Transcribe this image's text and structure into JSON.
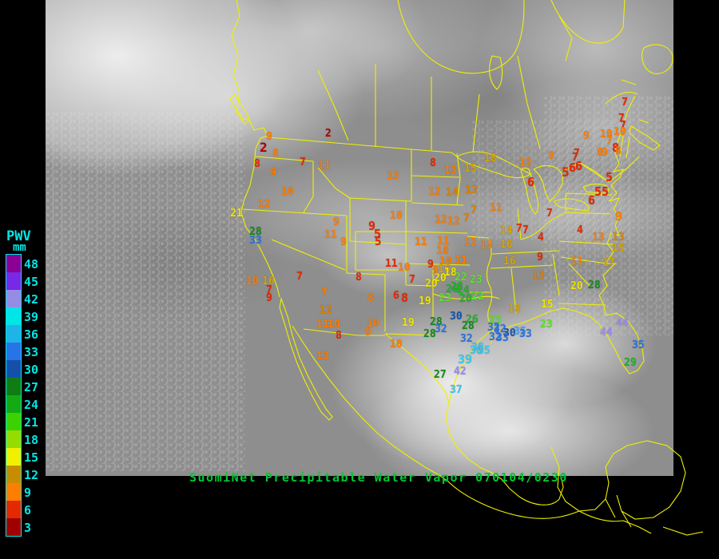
{
  "caption": {
    "text": "SuomiNet Precipitable Water Vapor 070104/0230"
  },
  "legend": {
    "title": "PWV",
    "unit": "mm",
    "entries": [
      {
        "value": "48",
        "color": "#8c0096"
      },
      {
        "value": "45",
        "color": "#7828e6"
      },
      {
        "value": "42",
        "color": "#968ce6"
      },
      {
        "value": "39",
        "color": "#00e6e6"
      },
      {
        "value": "36",
        "color": "#1eb4e6"
      },
      {
        "value": "33",
        "color": "#2874e6"
      },
      {
        "value": "30",
        "color": "#1450aa"
      },
      {
        "value": "27",
        "color": "#0f7d14"
      },
      {
        "value": "24",
        "color": "#14aa14"
      },
      {
        "value": "21",
        "color": "#3cd200"
      },
      {
        "value": "18",
        "color": "#96dc00"
      },
      {
        "value": "15",
        "color": "#f0f000"
      },
      {
        "value": "12",
        "color": "#c88c00"
      },
      {
        "value": "9",
        "color": "#ff7d00"
      },
      {
        "value": "6",
        "color": "#e62800"
      },
      {
        "value": "3",
        "color": "#a00000"
      }
    ]
  },
  "palette": {
    "DR": "#b40000",
    "R": "#e62800",
    "O": "#ff7d00",
    "MO": "#e08200",
    "DY": "#d7a500",
    "Y": "#f0e600",
    "LG": "#5ae628",
    "G": "#1eb428",
    "DG": "#128c1e",
    "DB": "#1455b4",
    "B": "#2874e6",
    "LB": "#46a0ff",
    "C": "#3cc8f0",
    "P": "#9b8cf0"
  },
  "stations": [
    [
      "9",
      333,
      165,
      "O"
    ],
    [
      "2",
      407,
      161,
      "DR"
    ],
    [
      "2",
      325,
      177,
      "DR",
      16
    ],
    [
      "8",
      341,
      186,
      "O"
    ],
    [
      "8",
      318,
      199,
      "R"
    ],
    [
      "9",
      338,
      210,
      "O"
    ],
    [
      "7",
      375,
      197,
      "R"
    ],
    [
      "11",
      398,
      201,
      "O"
    ],
    [
      "10",
      352,
      234,
      "O"
    ],
    [
      "12",
      323,
      250,
      "O"
    ],
    [
      "21",
      288,
      261,
      "Y"
    ],
    [
      "28",
      312,
      284,
      "DG"
    ],
    [
      "33",
      312,
      295,
      "B"
    ],
    [
      "10",
      308,
      346,
      "O"
    ],
    [
      "16",
      328,
      346,
      "DY"
    ],
    [
      "7",
      333,
      357,
      "R"
    ],
    [
      "9",
      333,
      367,
      "R"
    ],
    [
      "7",
      371,
      340,
      "R"
    ],
    [
      "7",
      402,
      360,
      "O"
    ],
    [
      "12",
      400,
      382,
      "MO"
    ],
    [
      "11",
      396,
      400,
      "O"
    ],
    [
      "10",
      410,
      400,
      "O"
    ],
    [
      "8",
      420,
      414,
      "R"
    ],
    [
      "13",
      396,
      440,
      "O"
    ],
    [
      "9",
      417,
      272,
      "O"
    ],
    [
      "11",
      406,
      288,
      "O"
    ],
    [
      "9",
      426,
      297,
      "O"
    ],
    [
      "9",
      461,
      276,
      "R",
      15
    ],
    [
      "5",
      468,
      286,
      "R",
      15
    ],
    [
      "5",
      469,
      296,
      "R",
      14
    ],
    [
      "11",
      482,
      324,
      "R"
    ],
    [
      "8",
      445,
      341,
      "R"
    ],
    [
      "8",
      460,
      367,
      "O"
    ],
    [
      "6",
      492,
      364,
      "R"
    ],
    [
      "8",
      502,
      366,
      "R",
      15
    ],
    [
      "10",
      459,
      399,
      "O"
    ],
    [
      "9",
      457,
      410,
      "O"
    ],
    [
      "10",
      488,
      425,
      "O"
    ],
    [
      "8",
      538,
      198,
      "R"
    ],
    [
      "13",
      484,
      214,
      "O"
    ],
    [
      "13",
      556,
      207,
      "O"
    ],
    [
      "15",
      581,
      205,
      "DY"
    ],
    [
      "18",
      606,
      192,
      "DY"
    ],
    [
      "12",
      536,
      234,
      "O"
    ],
    [
      "14",
      558,
      235,
      "MO"
    ],
    [
      "13",
      582,
      232,
      "MO"
    ],
    [
      "10",
      488,
      264,
      "O"
    ],
    [
      "7",
      589,
      257,
      "MO"
    ],
    [
      "7",
      580,
      267,
      "MO"
    ],
    [
      "11",
      613,
      254,
      "O"
    ],
    [
      "12",
      544,
      269,
      "O"
    ],
    [
      "12",
      560,
      271,
      "O"
    ],
    [
      "11",
      519,
      297,
      "O"
    ],
    [
      "11",
      547,
      296,
      "O"
    ],
    [
      "12",
      581,
      298,
      "O"
    ],
    [
      "13",
      601,
      301,
      "O"
    ],
    [
      "16",
      626,
      300,
      "DY"
    ],
    [
      "14",
      626,
      283,
      "DY"
    ],
    [
      "7",
      646,
      280,
      "R"
    ],
    [
      "7",
      654,
      282,
      "R"
    ],
    [
      "10",
      546,
      308,
      "O"
    ],
    [
      "10",
      550,
      321,
      "O"
    ],
    [
      "11",
      569,
      320,
      "O"
    ],
    [
      "16",
      630,
      321,
      "DY"
    ],
    [
      "9",
      672,
      316,
      "R"
    ],
    [
      "13",
      666,
      339,
      "MO"
    ],
    [
      "10",
      498,
      329,
      "O"
    ],
    [
      "9",
      686,
      189,
      "O"
    ],
    [
      "12",
      650,
      198,
      "O"
    ],
    [
      "6",
      660,
      221,
      "R",
      15
    ],
    [
      "7",
      718,
      186,
      "R"
    ],
    [
      "5",
      703,
      208,
      "R",
      16
    ],
    [
      "6",
      712,
      203,
      "R",
      15
    ],
    [
      "6",
      720,
      201,
      "R",
      15
    ],
    [
      "9",
      747,
      185,
      "O"
    ],
    [
      "8",
      766,
      178,
      "R",
      15
    ],
    [
      "5",
      758,
      215,
      "R",
      15
    ],
    [
      "5",
      744,
      233,
      "R",
      15
    ],
    [
      "5",
      753,
      233,
      "R",
      15
    ],
    [
      "6",
      736,
      244,
      "R",
      15
    ],
    [
      "9",
      770,
      264,
      "O",
      15
    ],
    [
      "7",
      684,
      261,
      "R"
    ],
    [
      "4",
      722,
      282,
      "R"
    ],
    [
      "4",
      673,
      291,
      "R"
    ],
    [
      "7",
      778,
      122,
      "R"
    ],
    [
      "7",
      774,
      142,
      "R"
    ],
    [
      "7",
      776,
      151,
      "R"
    ],
    [
      "9",
      730,
      164,
      "O"
    ],
    [
      "10",
      751,
      162,
      "O"
    ],
    [
      "10",
      768,
      159,
      "O"
    ],
    [
      "7",
      759,
      170,
      "O"
    ],
    [
      "8",
      770,
      183,
      "O"
    ],
    [
      "7",
      716,
      191,
      "R"
    ],
    [
      "9",
      753,
      185,
      "O"
    ],
    [
      "13",
      741,
      291,
      "O"
    ],
    [
      "13",
      766,
      291,
      "MO"
    ],
    [
      "15",
      766,
      305,
      "DY"
    ],
    [
      "11",
      714,
      321,
      "O"
    ],
    [
      "17",
      754,
      323,
      "DY"
    ],
    [
      "20",
      714,
      352,
      "Y"
    ],
    [
      "28",
      736,
      351,
      "DG"
    ],
    [
      "15",
      677,
      375,
      "Y"
    ],
    [
      "23",
      676,
      400,
      "LG"
    ],
    [
      "44",
      771,
      398,
      "P"
    ],
    [
      "44",
      751,
      410,
      "P"
    ],
    [
      "35",
      791,
      426,
      "B"
    ],
    [
      "29",
      781,
      448,
      "G"
    ],
    [
      "9",
      535,
      325,
      "R"
    ],
    [
      "16",
      548,
      331,
      "DY"
    ],
    [
      "18",
      556,
      335,
      "Y"
    ],
    [
      "20",
      543,
      342,
      "Y"
    ],
    [
      "20",
      532,
      349,
      "Y"
    ],
    [
      "22",
      569,
      341,
      "LG"
    ],
    [
      "23",
      588,
      344,
      "LG"
    ],
    [
      "28",
      564,
      353,
      "G"
    ],
    [
      "24",
      572,
      357,
      "G"
    ],
    [
      "26",
      558,
      356,
      "G"
    ],
    [
      "19",
      524,
      371,
      "Y"
    ],
    [
      "23",
      549,
      367,
      "LG"
    ],
    [
      "22",
      590,
      365,
      "LG"
    ],
    [
      "20",
      575,
      368,
      "G"
    ],
    [
      "19",
      503,
      398,
      "Y"
    ],
    [
      "18",
      636,
      381,
      "DY"
    ],
    [
      "7",
      512,
      344,
      "R"
    ],
    [
      "9",
      541,
      333,
      "O"
    ],
    [
      "30",
      563,
      390,
      "DB"
    ],
    [
      "26",
      583,
      394,
      "G"
    ],
    [
      "28",
      538,
      397,
      "DG"
    ],
    [
      "28",
      578,
      402,
      "DG"
    ],
    [
      "32",
      544,
      406,
      "B"
    ],
    [
      "28",
      530,
      412,
      "DG"
    ],
    [
      "23",
      612,
      395,
      "LG"
    ],
    [
      "32",
      610,
      404,
      "B"
    ],
    [
      "32",
      618,
      406,
      "B"
    ],
    [
      "30",
      630,
      411,
      "DB"
    ],
    [
      "35",
      643,
      409,
      "LB"
    ],
    [
      "33",
      650,
      412,
      "B"
    ],
    [
      "32",
      576,
      418,
      "B"
    ],
    [
      "32",
      612,
      416,
      "B"
    ],
    [
      "33",
      621,
      417,
      "B"
    ],
    [
      "38",
      590,
      429,
      "C"
    ],
    [
      "36",
      588,
      433,
      "C"
    ],
    [
      "35",
      598,
      433,
      "C"
    ],
    [
      "39",
      573,
      443,
      "C",
      15
    ],
    [
      "42",
      568,
      459,
      "P"
    ],
    [
      "27",
      543,
      463,
      "DG"
    ],
    [
      "37",
      563,
      482,
      "C"
    ]
  ]
}
